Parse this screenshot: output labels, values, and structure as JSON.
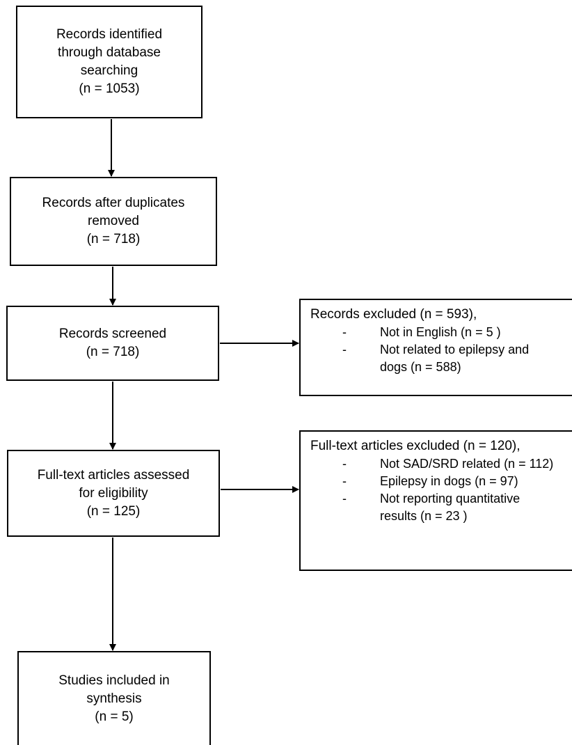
{
  "boxes": {
    "identified": {
      "lines": [
        "Records identified",
        "through database",
        "searching",
        "(n = 1053)"
      ]
    },
    "after_duplicates": {
      "lines": [
        "Records after duplicates",
        "removed",
        "(n =  718)"
      ]
    },
    "screened": {
      "lines": [
        "Records screened",
        "(n = 718)"
      ]
    },
    "fulltext": {
      "lines": [
        "Full-text articles assessed",
        "for eligibility",
        "(n =  125)"
      ]
    },
    "included": {
      "lines": [
        "Studies included in",
        "synthesis",
        "(n = 5)"
      ]
    }
  },
  "excluded_records": {
    "heading": "Records excluded (n = 593),",
    "items": [
      {
        "dash": "-",
        "lines": [
          "Not in English (n = 5 )"
        ]
      },
      {
        "dash": "-",
        "lines": [
          "Not related to epilepsy and",
          "dogs (n = 588)"
        ]
      }
    ]
  },
  "excluded_fulltext": {
    "heading": "Full-text articles excluded (n = 120),",
    "items": [
      {
        "dash": "-",
        "lines": [
          "Not SAD/SRD related (n = 112)"
        ]
      },
      {
        "dash": "-",
        "lines": [
          "Epilepsy in dogs (n = 97)"
        ]
      },
      {
        "dash": "-",
        "lines": [
          "Not reporting quantitative",
          "results (n = 23 )"
        ]
      }
    ]
  }
}
